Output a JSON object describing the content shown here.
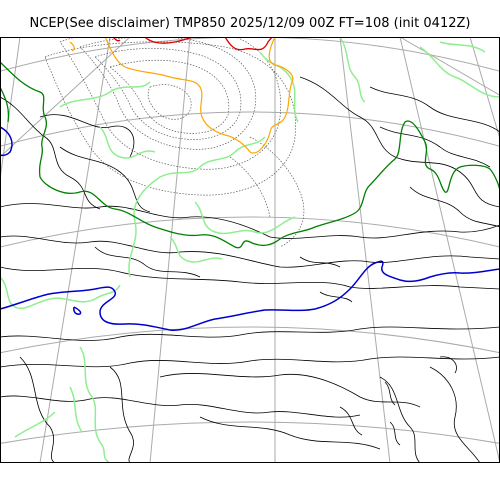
{
  "title": "NCEP(See disclaimer) TMP850 2025/12/09 00Z FT=108 (init 0412Z)",
  "colors": {
    "coastline": "#000000",
    "graticule": "#aaaaaa",
    "isotherm_dotted": "#555555",
    "zero_line": "#008000",
    "light_green": "#90ee90",
    "blue_line": "#0000cc",
    "orange_line": "#ffa500",
    "red_line": "#dd0000"
  }
}
